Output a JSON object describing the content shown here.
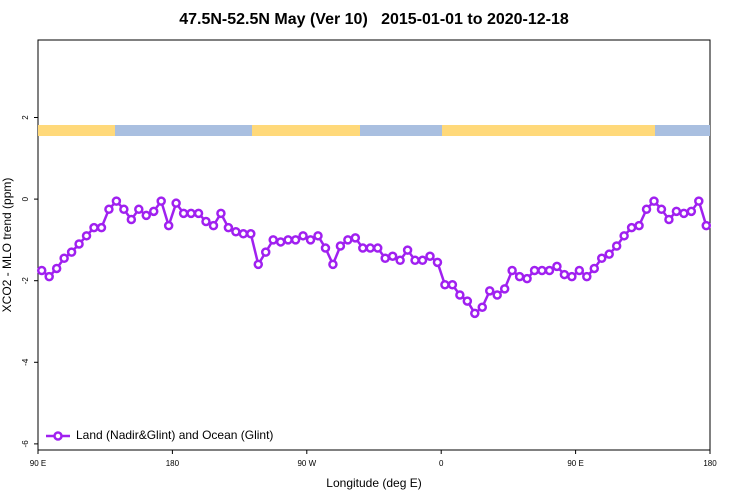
{
  "chart_data": {
    "type": "line",
    "title": "47.5N-52.5N May (Ver 10)   2015-01-01 to 2020-12-18",
    "xlabel": "Longitude (deg E)",
    "ylabel": "XCO2 - MLO trend (ppm)",
    "xlim": [
      90,
      540
    ],
    "xticks": [
      {
        "value": 90,
        "label": "90 E"
      },
      {
        "value": 180,
        "label": "180"
      },
      {
        "value": 270,
        "label": "90 W"
      },
      {
        "value": 360,
        "label": "0"
      },
      {
        "value": 450,
        "label": "90 E"
      },
      {
        "value": 540,
        "label": "180"
      }
    ],
    "ylim": [
      -6.15,
      3.9
    ],
    "yticks": [
      -6,
      -4,
      -2,
      0,
      2
    ],
    "legend": "bottom-left",
    "x": [
      92.5,
      97.5,
      102.5,
      107.5,
      112.5,
      117.5,
      122.5,
      127.5,
      132.5,
      137.5,
      142.5,
      147.5,
      152.5,
      157.5,
      162.5,
      167.5,
      172.5,
      177.5,
      182.5,
      187.5,
      192.5,
      197.5,
      202.5,
      207.5,
      212.5,
      217.5,
      222.5,
      227.5,
      232.5,
      237.5,
      242.5,
      247.5,
      252.5,
      257.5,
      262.5,
      267.5,
      272.5,
      277.5,
      282.5,
      287.5,
      292.5,
      297.5,
      302.5,
      307.5,
      312.5,
      317.5,
      322.5,
      327.5,
      332.5,
      337.5,
      342.5,
      347.5,
      352.5,
      357.5,
      362.5,
      367.5,
      372.5,
      377.5,
      382.5,
      387.5,
      392.5,
      397.5,
      402.5,
      407.5,
      412.5,
      417.5,
      422.5,
      427.5,
      432.5,
      437.5,
      442.5,
      447.5,
      452.5,
      457.5,
      462.5,
      467.5,
      472.5,
      477.5,
      482.5,
      487.5,
      492.5,
      497.5,
      502.5,
      507.5,
      512.5,
      517.5,
      522.5,
      527.5,
      532.5,
      537.5
    ],
    "series": [
      {
        "name": "Land (Nadir&Glint) and Ocean (Glint)",
        "color": "#a020f0",
        "values": [
          -1.75,
          -1.9,
          -1.7,
          -1.45,
          -1.3,
          -1.1,
          -0.9,
          -0.7,
          -0.7,
          -0.25,
          -0.05,
          -0.25,
          -0.5,
          -0.25,
          -0.4,
          -0.3,
          -0.05,
          -0.65,
          -0.1,
          -0.35,
          -0.35,
          -0.35,
          -0.55,
          -0.65,
          -0.35,
          -0.7,
          -0.8,
          -0.85,
          -0.85,
          -1.6,
          -1.3,
          -1.0,
          -1.05,
          -1.0,
          -1.0,
          -0.9,
          -1.0,
          -0.9,
          -1.2,
          -1.6,
          -1.15,
          -1.0,
          -0.95,
          -1.2,
          -1.2,
          -1.2,
          -1.45,
          -1.4,
          -1.5,
          -1.25,
          -1.5,
          -1.5,
          -1.4,
          -1.55,
          -2.1,
          -2.1,
          -2.35,
          -2.5,
          -2.8,
          -2.65,
          -2.25,
          -2.35,
          -2.2,
          -1.75,
          -1.9,
          -1.95,
          -1.75,
          -1.75,
          -1.75,
          -1.65,
          -1.85,
          -1.9,
          -1.75,
          -1.9,
          -1.7,
          -1.45,
          -1.35,
          -1.15,
          -0.9,
          -0.7,
          -0.65,
          -0.25,
          -0.05,
          -0.25,
          -0.5,
          -0.3,
          -0.35,
          -0.3,
          -0.05,
          -0.65
        ]
      }
    ]
  }
}
